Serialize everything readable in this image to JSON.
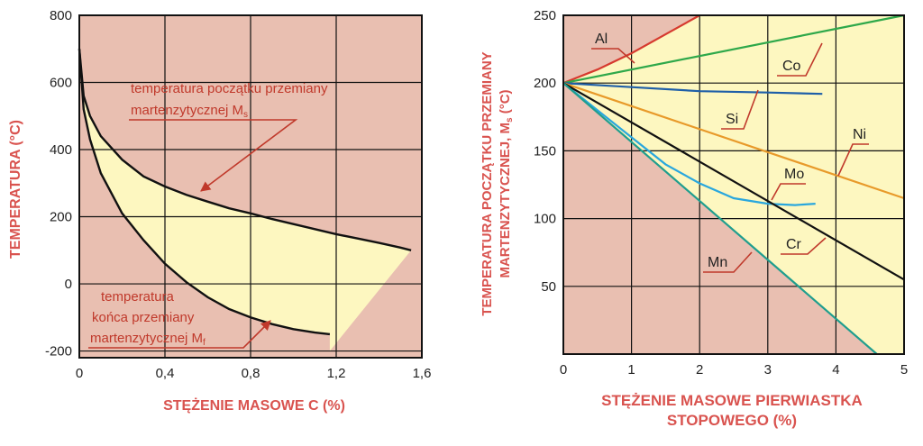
{
  "colors": {
    "background": "#e9bfb1",
    "band_fill": "#fdf7c0",
    "grid": "#111111",
    "label_red": "#d9534f",
    "leader_red": "#c0392b"
  },
  "chart_data": [
    {
      "type": "area",
      "xlabel": "STĘŻENIE MASOWE C (%)",
      "ylabel": "TEMPERATURA (°C)",
      "xlim": [
        0,
        1.6
      ],
      "ylim": [
        -220,
        800
      ],
      "x_ticks": [
        "0",
        "0,4",
        "0,8",
        "1,2",
        "1,6"
      ],
      "y_ticks": [
        "800",
        "600",
        "400",
        "200",
        "0",
        "-200"
      ],
      "grid": true,
      "series": [
        {
          "name": "temperatura początku przemiany martenzytycznej Ms",
          "x": [
            0.0,
            0.02,
            0.05,
            0.1,
            0.2,
            0.3,
            0.4,
            0.5,
            0.6,
            0.7,
            0.8,
            0.9,
            1.0,
            1.1,
            1.2,
            1.3,
            1.4,
            1.5,
            1.55
          ],
          "y": [
            700,
            560,
            500,
            440,
            370,
            320,
            290,
            265,
            245,
            225,
            210,
            193,
            178,
            163,
            148,
            135,
            122,
            108,
            100
          ]
        },
        {
          "name": "temperatura końca przemiany martenzytycznej Mf",
          "x": [
            0.0,
            0.02,
            0.05,
            0.1,
            0.2,
            0.3,
            0.4,
            0.5,
            0.6,
            0.7,
            0.8,
            0.9,
            1.0,
            1.1,
            1.17
          ],
          "y": [
            700,
            520,
            430,
            330,
            210,
            130,
            60,
            5,
            -40,
            -75,
            -100,
            -120,
            -135,
            -145,
            -150
          ]
        }
      ],
      "band_edge": {
        "x": [
          1.17,
          1.55
        ],
        "y": [
          -200,
          100
        ]
      },
      "annotations": {
        "ms_line1": "temperatura początku przemiany",
        "ms_line2": "martenzytycznej M",
        "ms_sub": "s",
        "mf_line1": "temperatura",
        "mf_line2": "końca przemiany",
        "mf_line3": "martenzytycznej M",
        "mf_sub": "f"
      }
    },
    {
      "type": "line",
      "xlabel_line1": "STĘŻENIE MASOWE PIERWIASTKA",
      "xlabel_line2": "STOPOWEGO (%)",
      "ylabel_line1": "TEMPERATURA POCZĄTKU PRZEMIANY",
      "ylabel_line2": "MARTENZYTYCZNEJ, M",
      "ylabel_sub": "s",
      "ylabel_end": " (°C)",
      "xlim": [
        0,
        5
      ],
      "ylim": [
        0,
        250
      ],
      "x_ticks": [
        "0",
        "1",
        "2",
        "3",
        "4",
        "5"
      ],
      "y_ticks": [
        "250",
        "200",
        "150",
        "100",
        "50"
      ],
      "grid": true,
      "series": [
        {
          "name": "Al",
          "color": "#d63a2f",
          "x": [
            0,
            0.5,
            1.0,
            1.5,
            2.0
          ],
          "y": [
            200,
            210,
            222,
            236,
            250
          ]
        },
        {
          "name": "Co",
          "color": "#2ea84a",
          "x": [
            0,
            5
          ],
          "y": [
            200,
            250
          ]
        },
        {
          "name": "Si",
          "color": "#1f5fa8",
          "x": [
            0,
            1,
            2,
            3,
            3.8
          ],
          "y": [
            200,
            197,
            194,
            193,
            192
          ]
        },
        {
          "name": "Ni",
          "color": "#e89a2a",
          "x": [
            0,
            5
          ],
          "y": [
            200,
            115
          ]
        },
        {
          "name": "Mo",
          "color": "#2aa7dd",
          "x": [
            0,
            1,
            1.5,
            2,
            2.5,
            3,
            3.4,
            3.7
          ],
          "y": [
            200,
            160,
            140,
            126,
            115,
            111,
            110,
            111
          ]
        },
        {
          "name": "Cr",
          "color": "#111111",
          "x": [
            0,
            5
          ],
          "y": [
            200,
            55
          ]
        },
        {
          "name": "Mn",
          "color": "#1f9e8e",
          "x": [
            0,
            4.6
          ],
          "y": [
            200,
            0
          ]
        }
      ]
    }
  ]
}
